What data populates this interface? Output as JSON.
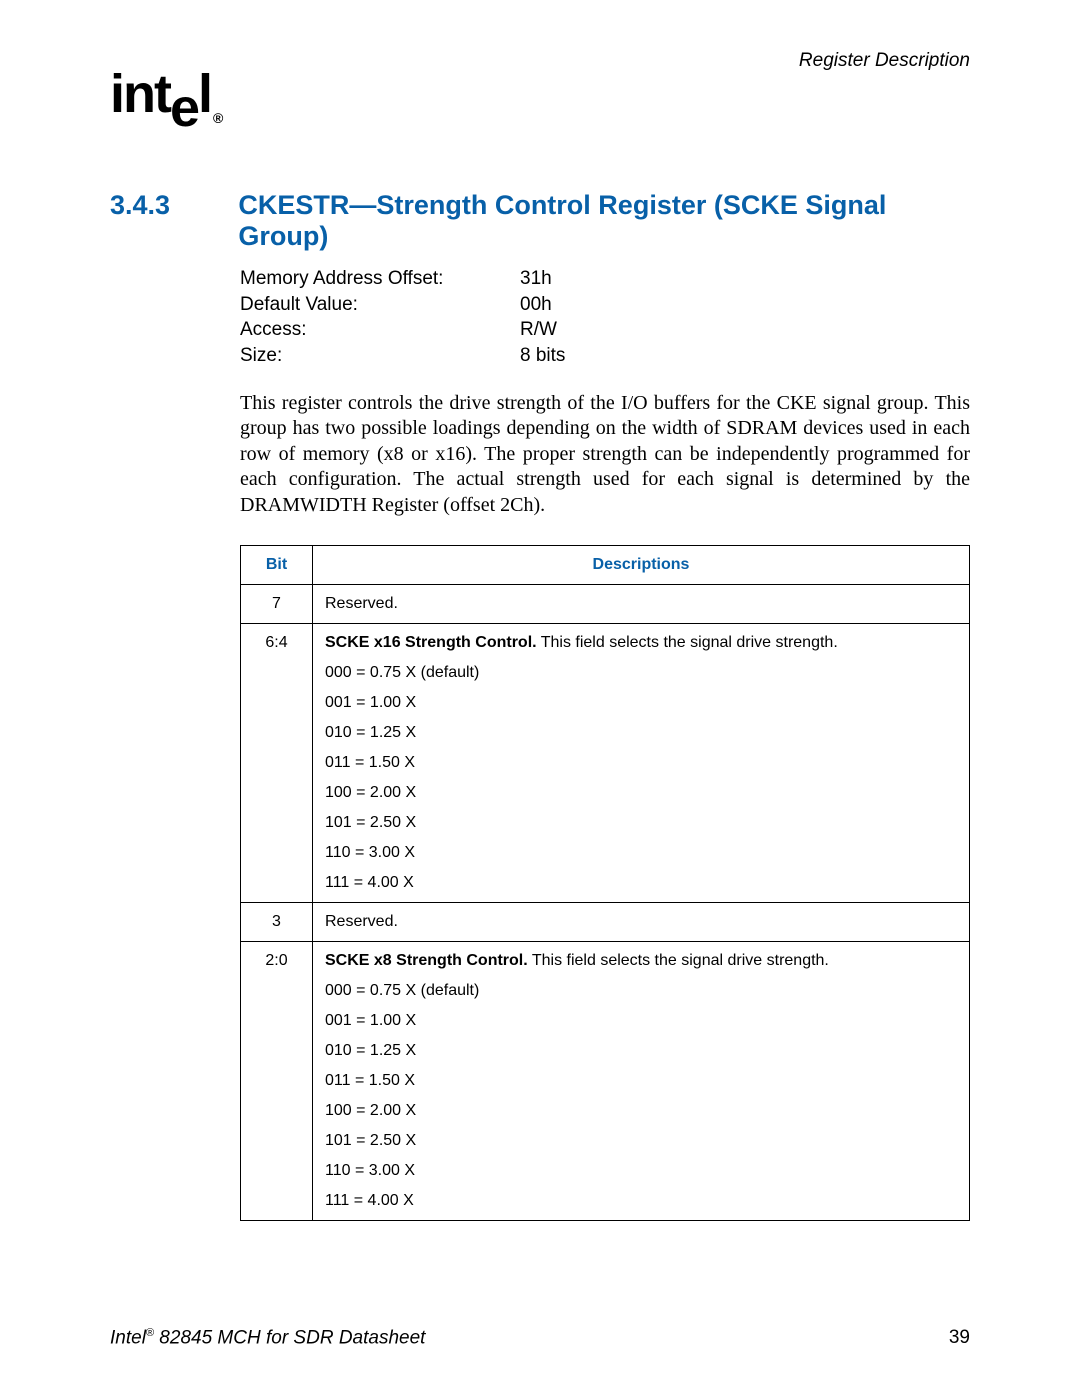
{
  "header": {
    "label": "Register Description"
  },
  "logo": {
    "text_pre": "int",
    "text_drop": "e",
    "text_post": "l",
    "reg": "®"
  },
  "section": {
    "number": "3.4.3",
    "title": "CKESTR—Strength Control Register (SCKE Signal Group)"
  },
  "attrs": {
    "rows": [
      {
        "label": "Memory Address Offset:",
        "value": "31h"
      },
      {
        "label": "Default Value:",
        "value": "00h"
      },
      {
        "label": "Access:",
        "value": "R/W"
      },
      {
        "label": "Size:",
        "value": "8 bits"
      }
    ]
  },
  "paragraph": "This register controls the drive strength of the I/O buffers for the CKE signal group. This group has two possible loadings depending on the width of SDRAM devices used in each row of memory (x8 or x16). The proper strength can be independently programmed for each configuration. The actual strength used for each signal is determined by the DRAMWIDTH Register (offset 2Ch).",
  "table": {
    "headers": {
      "bit": "Bit",
      "desc": "Descriptions"
    },
    "header_color": "#0860a8",
    "border_color": "#000000",
    "font_size": 16,
    "rows": [
      {
        "bit": "7",
        "lines": [
          {
            "text": "Reserved."
          }
        ]
      },
      {
        "bit": "6:4",
        "lines": [
          {
            "strong": "SCKE x16 Strength Control.",
            "text": " This field selects the signal drive strength."
          },
          {
            "text": "000 = 0.75 X (default)"
          },
          {
            "text": "001 = 1.00 X"
          },
          {
            "text": "010 = 1.25 X"
          },
          {
            "text": "011 = 1.50 X"
          },
          {
            "text": "100 = 2.00 X"
          },
          {
            "text": "101 = 2.50 X"
          },
          {
            "text": "110 = 3.00 X"
          },
          {
            "text": "111 = 4.00 X"
          }
        ]
      },
      {
        "bit": "3",
        "lines": [
          {
            "text": "Reserved."
          }
        ]
      },
      {
        "bit": "2:0",
        "lines": [
          {
            "strong": "SCKE x8 Strength Control.",
            "text": " This field selects the signal drive strength."
          },
          {
            "text": "000 = 0.75 X (default)"
          },
          {
            "text": "001 = 1.00 X"
          },
          {
            "text": "010 = 1.25 X"
          },
          {
            "text": "011 = 1.50 X"
          },
          {
            "text": "100 = 2.00 X"
          },
          {
            "text": "101 = 2.50 X"
          },
          {
            "text": "110 = 3.00 X"
          },
          {
            "text": "111 = 4.00 X"
          }
        ]
      }
    ]
  },
  "footer": {
    "doc_pre": "Intel",
    "doc_sup": "®",
    "doc_post": " 82845 MCH for SDR Datasheet",
    "page": "39"
  },
  "colors": {
    "accent": "#0860a8",
    "text": "#000000",
    "background": "#ffffff"
  }
}
